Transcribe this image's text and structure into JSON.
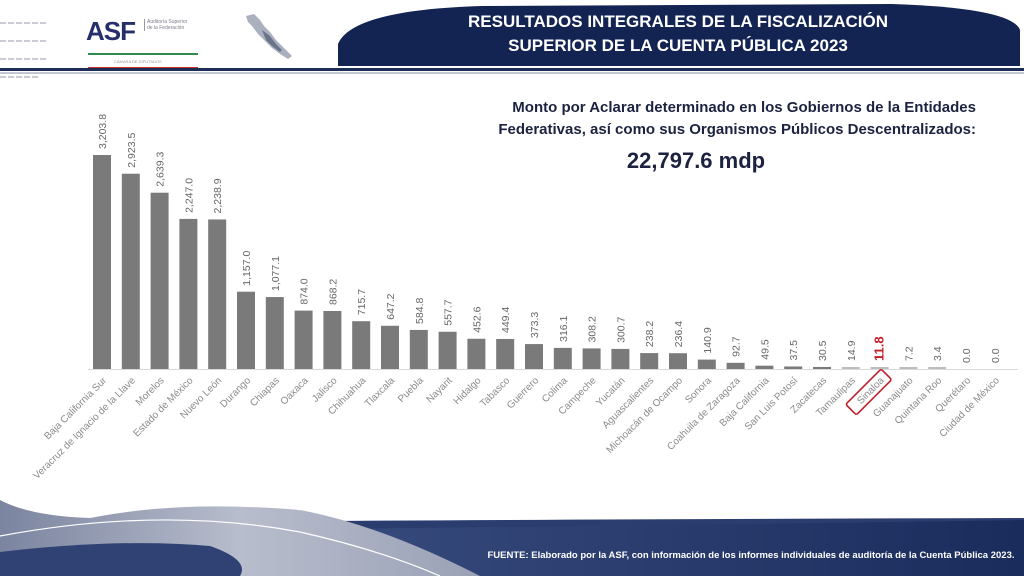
{
  "header": {
    "logo_text": "ASF",
    "logo_subtitle": "Auditoría Superior de la Federación",
    "logo_chamber": "CÁMARA DE DIPUTADOS",
    "title_line1": "RESULTADOS INTEGRALES DE LA FISCALIZACIÓN",
    "title_line2": "SUPERIOR DE LA CUENTA PÚBLICA 2023"
  },
  "summary": {
    "line1": "Monto por Aclarar determinado en los Gobiernos de la Entidades",
    "line2": "Federativas, así como sus Organismos Públicos Descentralizados:",
    "total": "22,797.6 mdp"
  },
  "footer": {
    "source": "FUENTE: Elaborado por la ASF, con información de los informes individuales de auditoría de la Cuenta Pública 2023."
  },
  "colors": {
    "bar": "#7a7a7a",
    "highlight": "#c0202a",
    "navy": "#1d2d55",
    "label": "#8a8a8a"
  },
  "chart_data": {
    "type": "bar",
    "title": "Monto por Aclarar determinado en los Gobiernos de la Entidades Federativas, así como sus Organismos Públicos Descentralizados: 22,797.6 mdp",
    "xlabel": "",
    "ylabel": "",
    "ylim": [
      0,
      3500
    ],
    "grid": false,
    "legend": "none",
    "categories": [
      "Baja California Sur",
      "Veracruz de Ignacio de la Llave",
      "Morelos",
      "Estado de México",
      "Nuevo León",
      "Durango",
      "Chiapas",
      "Oaxaca",
      "Jalisco",
      "Chihuahua",
      "Tlaxcala",
      "Puebla",
      "Nayarit",
      "Hidalgo",
      "Tabasco",
      "Guerrero",
      "Colima",
      "Campeche",
      "Yucatán",
      "Aguascalientes",
      "Michoacán de Ocampo",
      "Sonora",
      "Coahuila de Zaragoza",
      "Baja California",
      "San Luis Potosí",
      "Zacatecas",
      "Tamaulipas",
      "Sinaloa",
      "Guanajuato",
      "Quintana Roo",
      "Querétaro",
      "Ciudad de México"
    ],
    "values": [
      3203.8,
      2923.5,
      2639.3,
      2247.0,
      2238.9,
      1157.0,
      1077.1,
      874.0,
      868.2,
      715.7,
      647.2,
      584.8,
      557.7,
      452.6,
      449.4,
      373.3,
      316.1,
      308.2,
      300.7,
      238.2,
      236.4,
      140.9,
      92.7,
      49.5,
      37.5,
      30.5,
      14.9,
      11.8,
      7.2,
      3.4,
      0.0,
      0.0
    ],
    "value_labels": [
      "3,203.8",
      "2,923.5",
      "2,639.3",
      "2,247.0",
      "2,238.9",
      "1,157.0",
      "1,077.1",
      "874.0",
      "868.2",
      "715.7",
      "647.2",
      "584.8",
      "557.7",
      "452.6",
      "449.4",
      "373.3",
      "316.1",
      "308.2",
      "300.7",
      "238.2",
      "236.4",
      "140.9",
      "92.7",
      "49.5",
      "37.5",
      "30.5",
      "14.9",
      "11.8",
      "7.2",
      "3.4",
      "0.0",
      "0.0"
    ],
    "highlighted": "Sinaloa"
  }
}
